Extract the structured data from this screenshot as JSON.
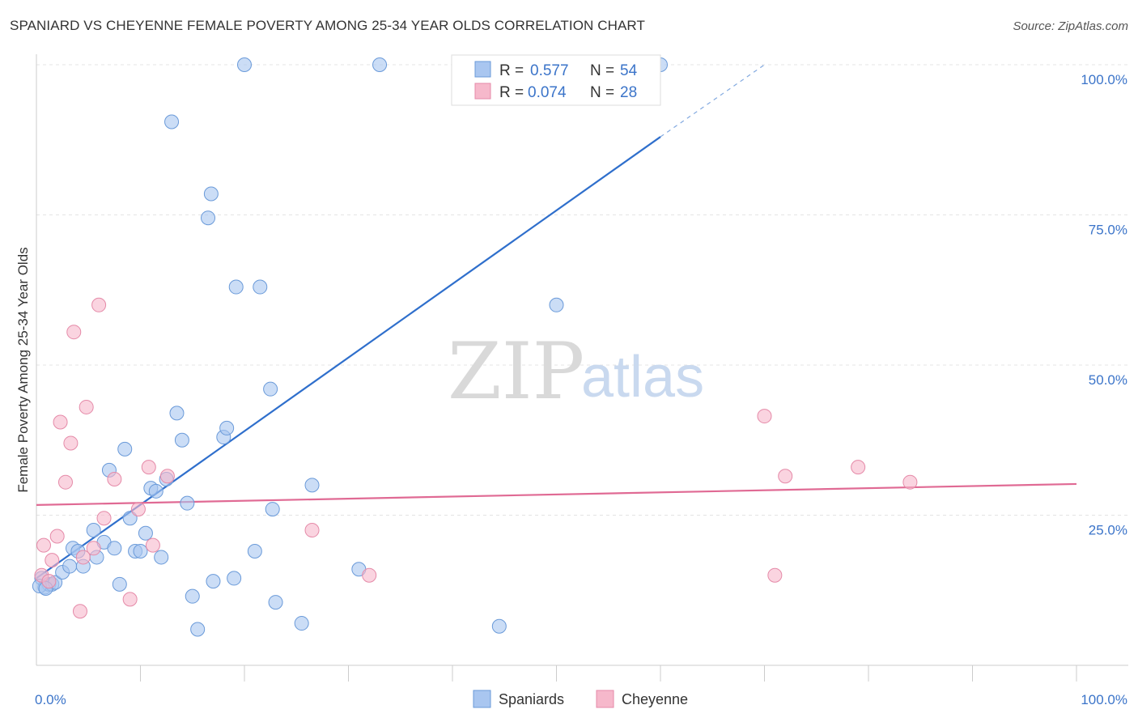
{
  "title": "SPANIARD VS CHEYENNE FEMALE POVERTY AMONG 25-34 YEAR OLDS CORRELATION CHART",
  "source": "Source: ZipAtlas.com",
  "watermark": {
    "part1": "ZIP",
    "part2": "atlas"
  },
  "legend": {
    "rows": [
      {
        "r_label": "R = ",
        "r_value": "0.577",
        "n_label": "N = ",
        "n_value": "54",
        "color": "#a9c6f0"
      },
      {
        "r_label": "R = ",
        "r_value": "0.074",
        "n_label": "N = ",
        "n_value": "28",
        "color": "#f6b8cb"
      }
    ]
  },
  "bottom_legend": {
    "series1": "Spaniards",
    "series2": "Cheyenne"
  },
  "chart_data": {
    "type": "scatter",
    "ylabel": "Female Poverty Among 25-34 Year Olds",
    "xlim": [
      0,
      100
    ],
    "ylim": [
      0,
      100
    ],
    "x_tick_labels": [
      "0.0%",
      "100.0%"
    ],
    "y_tick_labels": [
      "25.0%",
      "50.0%",
      "75.0%",
      "100.0%"
    ],
    "y_ticks": [
      25,
      50,
      75,
      100
    ],
    "grid": true,
    "series": [
      {
        "name": "Spaniards",
        "color": "#a9c6f0",
        "stroke": "#6a9ad9",
        "line_color": "#2f6fcc",
        "trend": {
          "x0": 0,
          "y0": 14.5,
          "x1": 60,
          "y1": 88,
          "dash_to_x": 70,
          "dash_to_y": 100
        },
        "points": [
          [
            0.5,
            14.5
          ],
          [
            0.8,
            13
          ],
          [
            1.2,
            13.5
          ],
          [
            1.5,
            13.5
          ],
          [
            1.8,
            13.8
          ],
          [
            2.5,
            15.5
          ],
          [
            3.2,
            16.5
          ],
          [
            3.5,
            19.5
          ],
          [
            4,
            19
          ],
          [
            4.5,
            16.5
          ],
          [
            5.5,
            22.5
          ],
          [
            5.8,
            18
          ],
          [
            6.5,
            20.5
          ],
          [
            7,
            32.5
          ],
          [
            7.5,
            19.5
          ],
          [
            8,
            13.5
          ],
          [
            8.5,
            36
          ],
          [
            9,
            24.5
          ],
          [
            9.5,
            19
          ],
          [
            10,
            19
          ],
          [
            10.5,
            22
          ],
          [
            11,
            29.5
          ],
          [
            11.5,
            29
          ],
          [
            12,
            18
          ],
          [
            12.5,
            31
          ],
          [
            13,
            90.5
          ],
          [
            13.5,
            42
          ],
          [
            14,
            37.5
          ],
          [
            14.5,
            27
          ],
          [
            15,
            11.5
          ],
          [
            15.5,
            6
          ],
          [
            16.5,
            74.5
          ],
          [
            16.8,
            78.5
          ],
          [
            17,
            14
          ],
          [
            18,
            38
          ],
          [
            18.3,
            39.5
          ],
          [
            19,
            14.5
          ],
          [
            19.2,
            63
          ],
          [
            20,
            100
          ],
          [
            21,
            19
          ],
          [
            21.5,
            63
          ],
          [
            22.5,
            46
          ],
          [
            22.7,
            26
          ],
          [
            23,
            10.5
          ],
          [
            25.5,
            7
          ],
          [
            26.5,
            30
          ],
          [
            31,
            16
          ],
          [
            33,
            100
          ],
          [
            44.5,
            6.5
          ],
          [
            50,
            60
          ],
          [
            47,
            100
          ],
          [
            60,
            100
          ],
          [
            0.3,
            13.2
          ],
          [
            0.9,
            12.8
          ]
        ]
      },
      {
        "name": "Cheyenne",
        "color": "#f6b8cb",
        "stroke": "#e58aa8",
        "line_color": "#e06a94",
        "trend": {
          "x0": 0,
          "y0": 26.7,
          "x1": 100,
          "y1": 30.2
        },
        "points": [
          [
            0.5,
            15
          ],
          [
            0.7,
            20
          ],
          [
            1.5,
            17.5
          ],
          [
            2,
            21.5
          ],
          [
            2.3,
            40.5
          ],
          [
            2.8,
            30.5
          ],
          [
            3.3,
            37
          ],
          [
            3.6,
            55.5
          ],
          [
            4.2,
            9
          ],
          [
            4.5,
            18
          ],
          [
            4.8,
            43
          ],
          [
            5.5,
            19.5
          ],
          [
            6,
            60
          ],
          [
            6.5,
            24.5
          ],
          [
            7.5,
            31
          ],
          [
            9,
            11
          ],
          [
            9.8,
            26
          ],
          [
            10.8,
            33
          ],
          [
            11.2,
            20
          ],
          [
            12.6,
            31.5
          ],
          [
            26.5,
            22.5
          ],
          [
            32,
            15
          ],
          [
            70,
            41.5
          ],
          [
            71,
            15
          ],
          [
            72,
            31.5
          ],
          [
            79,
            33
          ],
          [
            84,
            30.5
          ],
          [
            1.2,
            14
          ]
        ]
      }
    ]
  }
}
